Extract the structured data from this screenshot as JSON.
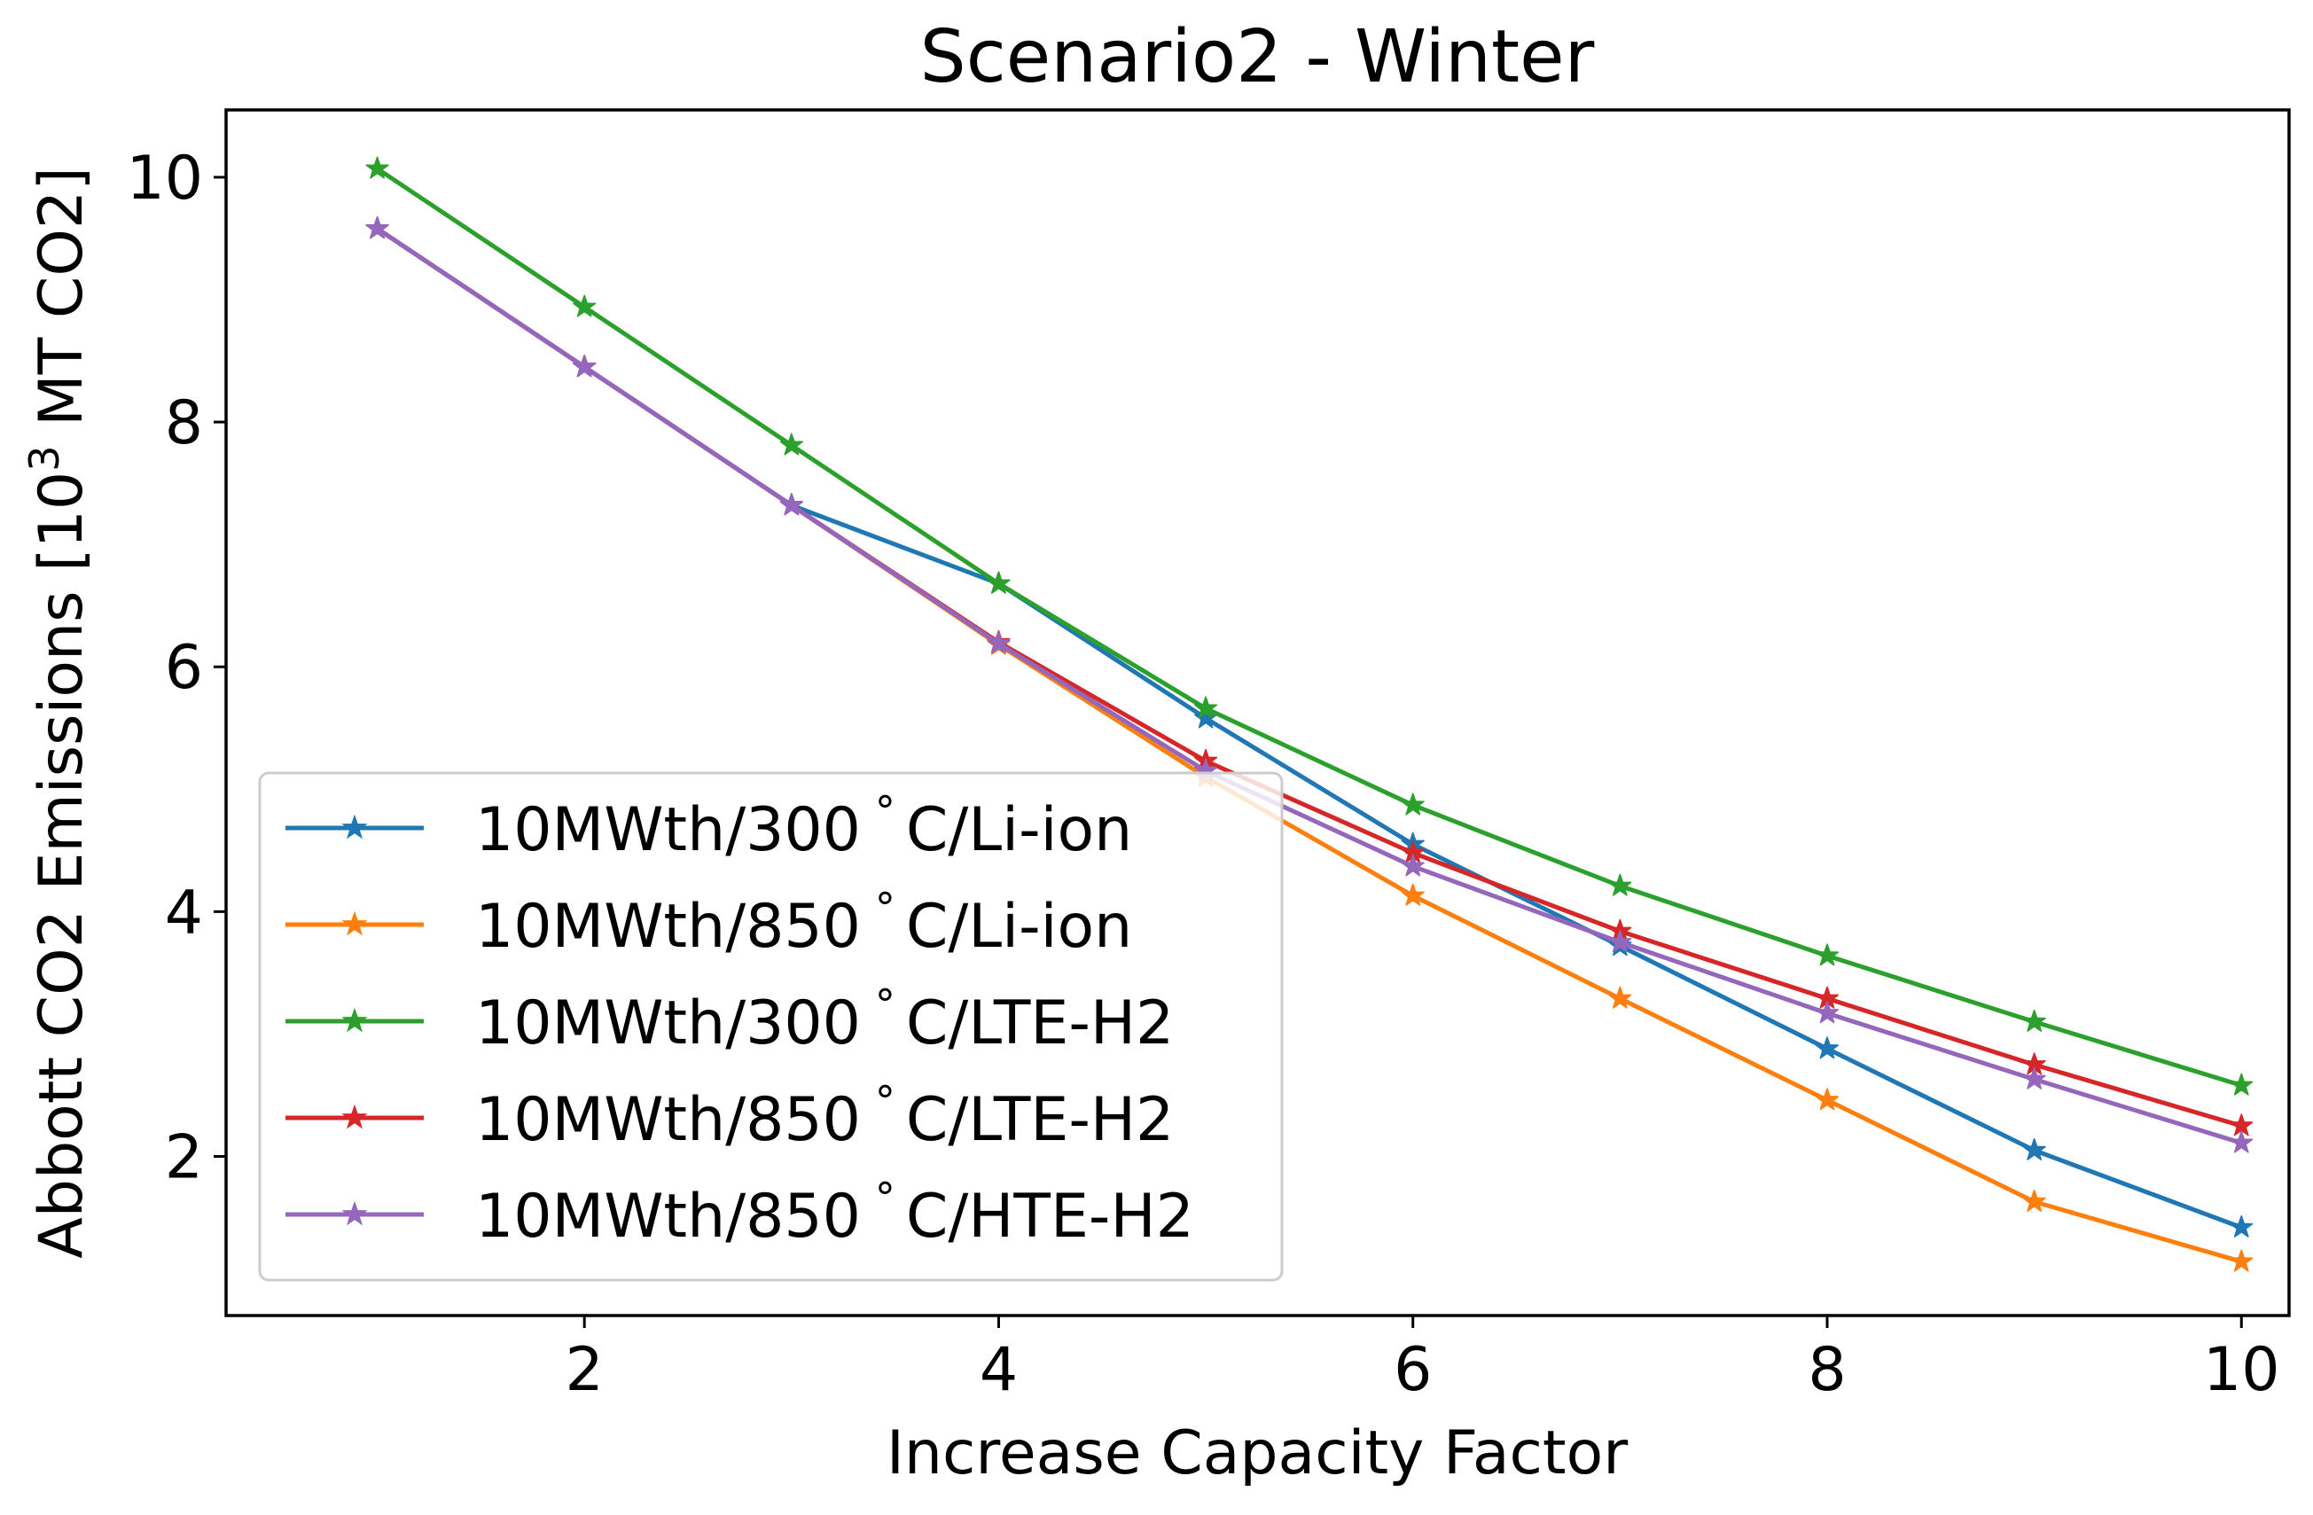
{
  "chart_data": {
    "type": "line",
    "title": "Scenario2 - Winter",
    "xlabel": "Increase Capacity Factor",
    "ylabel": {
      "pre": "Abbott CO2 Emissions [10",
      "sup": "3",
      "post": " MT CO2]"
    },
    "xlim": [
      0.27,
      10.23
    ],
    "ylim": [
      0.7,
      10.55
    ],
    "xticks": [
      2,
      4,
      6,
      8,
      10
    ],
    "yticks": [
      2,
      4,
      6,
      8,
      10
    ],
    "grid": false,
    "legend_position": "lower-left",
    "marker": "star",
    "x": [
      1,
      2,
      3,
      4,
      5,
      6,
      7,
      8,
      9,
      10
    ],
    "series": [
      {
        "name": "10MWth/300$^\\circ$C/Li-ion",
        "legend_parts": [
          "10MWth/300",
          "°",
          "C/Li-ion"
        ],
        "color": "#1f77b4",
        "values": [
          9.58,
          8.45,
          7.32,
          6.68,
          5.58,
          4.55,
          3.72,
          2.88,
          2.05,
          1.42
        ]
      },
      {
        "name": "10MWth/850$^\\circ$C/Li-ion",
        "legend_parts": [
          "10MWth/850",
          "°",
          "C/Li-ion"
        ],
        "color": "#ff7f0e",
        "values": [
          9.58,
          8.45,
          7.32,
          6.18,
          5.1,
          4.13,
          3.29,
          2.46,
          1.63,
          1.14
        ]
      },
      {
        "name": "10MWth/300$^\\circ$C/LTE-H2",
        "legend_parts": [
          "10MWth/300",
          "°",
          "C/LTE-H2"
        ],
        "color": "#2ca02c",
        "values": [
          10.07,
          8.94,
          7.81,
          6.68,
          5.66,
          4.87,
          4.21,
          3.64,
          3.1,
          2.58
        ]
      },
      {
        "name": "10MWth/850$^\\circ$C/LTE-H2",
        "legend_parts": [
          "10MWth/850",
          "°",
          "C/LTE-H2"
        ],
        "color": "#d62728",
        "values": [
          9.58,
          8.45,
          7.32,
          6.2,
          5.23,
          4.48,
          3.84,
          3.29,
          2.75,
          2.25
        ]
      },
      {
        "name": "10MWth/850$^\\circ$C/HTE-H2",
        "legend_parts": [
          "10MWth/850",
          "°",
          "C/HTE-H2"
        ],
        "color": "#9467bd",
        "values": [
          9.58,
          8.45,
          7.32,
          6.19,
          5.15,
          4.37,
          3.75,
          3.17,
          2.63,
          2.11
        ]
      }
    ]
  }
}
